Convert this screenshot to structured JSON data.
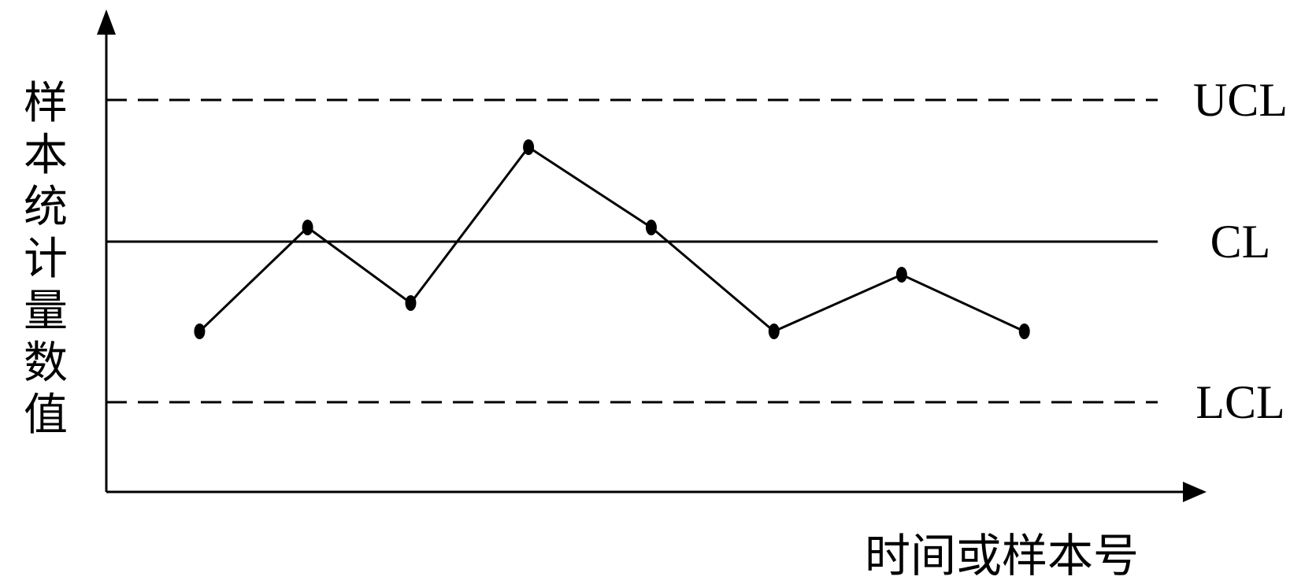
{
  "chart_data": {
    "type": "line",
    "xlabel": "时间或样本号",
    "ylabel": "样本统计量数值",
    "ylim": [
      0,
      10
    ],
    "control_lines": [
      {
        "label": "UCL",
        "value": 8.3,
        "style": "dashed"
      },
      {
        "label": "CL",
        "value": 5.3,
        "style": "solid"
      },
      {
        "label": "LCL",
        "value": 1.9,
        "style": "dashed"
      }
    ],
    "series": [
      {
        "values": [
          3.4,
          5.6,
          4.0,
          7.3,
          5.6,
          3.4,
          4.6,
          3.4
        ]
      }
    ],
    "x": [
      1.9,
      4.1,
      6.2,
      8.6,
      11.1,
      13.6,
      16.2,
      18.7
    ],
    "xlim": [
      0,
      23.1
    ],
    "grid": false
  }
}
